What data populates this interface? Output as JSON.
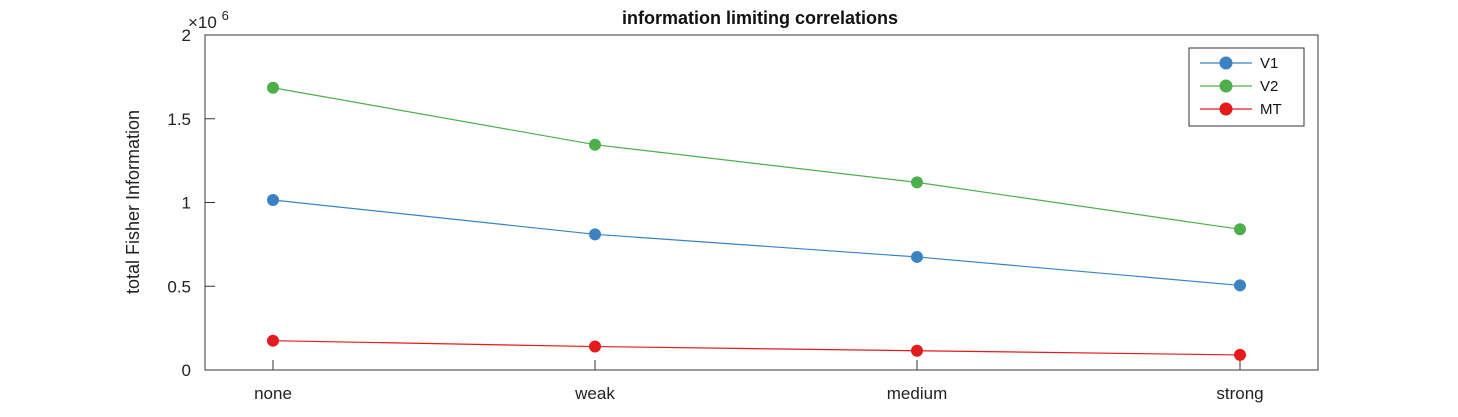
{
  "chart_data": {
    "type": "line",
    "title": "information limiting correlations",
    "xlabel": "",
    "ylabel": "total Fisher Information",
    "y_exponent_label": {
      "base": "×10",
      "power": "6"
    },
    "categories": [
      "none",
      "weak",
      "medium",
      "strong"
    ],
    "ylim": [
      0,
      2000000
    ],
    "yticks": [
      {
        "value": 0,
        "label": "0"
      },
      {
        "value": 500000,
        "label": "0.5"
      },
      {
        "value": 1000000,
        "label": "1"
      },
      {
        "value": 1500000,
        "label": "1.5"
      },
      {
        "value": 2000000,
        "label": "2"
      }
    ],
    "grid": false,
    "legend": "top-right",
    "series": [
      {
        "name": "V1",
        "color": "#3B82C4",
        "values": [
          1015000,
          810000,
          675000,
          505000
        ]
      },
      {
        "name": "V2",
        "color": "#4DAF4A",
        "values": [
          1685000,
          1345000,
          1120000,
          840000
        ]
      },
      {
        "name": "MT",
        "color": "#E41A1C",
        "values": [
          175000,
          140000,
          115000,
          90000
        ]
      }
    ]
  }
}
